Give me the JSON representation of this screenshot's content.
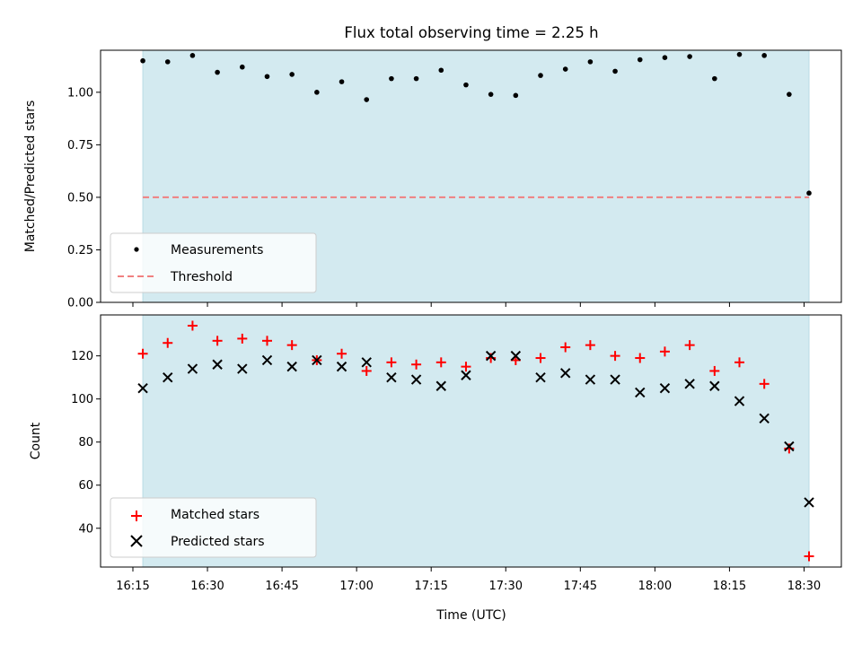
{
  "chart_data": [
    {
      "type": "scatter",
      "title": "Flux total observing time = 2.25 h",
      "xlabel": "",
      "ylabel": "Matched/Predicted stars",
      "ylim": [
        0,
        1.2
      ],
      "yticks": [
        "0.00",
        "0.25",
        "0.50",
        "0.75",
        "1.00"
      ],
      "shaded_span": [
        "16:17",
        "18:31"
      ],
      "threshold": 0.5,
      "legend_position": "lower-left",
      "legend": [
        "Measurements",
        "Threshold"
      ],
      "series": [
        {
          "name": "Measurements",
          "x": [
            "16:17",
            "16:22",
            "16:27",
            "16:32",
            "16:37",
            "16:42",
            "16:47",
            "16:52",
            "16:57",
            "17:02",
            "17:07",
            "17:12",
            "17:17",
            "17:22",
            "17:27",
            "17:32",
            "17:37",
            "17:42",
            "17:47",
            "17:52",
            "17:57",
            "18:02",
            "18:07",
            "18:12",
            "18:17",
            "18:22",
            "18:27",
            "18:31"
          ],
          "y": [
            1.15,
            1.145,
            1.175,
            1.095,
            1.12,
            1.075,
            1.085,
            1.0,
            1.05,
            0.965,
            1.065,
            1.065,
            1.105,
            1.035,
            0.99,
            0.985,
            1.08,
            1.11,
            1.145,
            1.1,
            1.155,
            1.165,
            1.17,
            1.065,
            1.18,
            1.175,
            0.99,
            0.52
          ],
          "color": "#000000"
        },
        {
          "name": "Threshold",
          "y": 0.5,
          "color": "#f08080",
          "style": "dashed"
        }
      ]
    },
    {
      "type": "scatter",
      "title": "",
      "xlabel": "Time (UTC)",
      "ylabel": "Count",
      "ylim": [
        22,
        139
      ],
      "yticks": [
        "40",
        "60",
        "80",
        "100",
        "120"
      ],
      "xticks": [
        "16:15",
        "16:30",
        "16:45",
        "17:00",
        "17:15",
        "17:30",
        "17:45",
        "18:00",
        "18:15",
        "18:30"
      ],
      "shaded_span": [
        "16:17",
        "18:31"
      ],
      "legend_position": "lower-left",
      "legend": [
        "Matched stars",
        "Predicted stars"
      ],
      "series": [
        {
          "name": "Matched stars",
          "marker": "+",
          "color": "#ff0000",
          "x": [
            "16:17",
            "16:22",
            "16:27",
            "16:32",
            "16:37",
            "16:42",
            "16:47",
            "16:52",
            "16:57",
            "17:02",
            "17:07",
            "17:12",
            "17:17",
            "17:22",
            "17:27",
            "17:32",
            "17:37",
            "17:42",
            "17:47",
            "17:52",
            "17:57",
            "18:02",
            "18:07",
            "18:12",
            "18:17",
            "18:22",
            "18:27",
            "18:31"
          ],
          "y": [
            121,
            126,
            134,
            127,
            128,
            127,
            125,
            118,
            121,
            113,
            117,
            116,
            117,
            115,
            119,
            118,
            119,
            124,
            125,
            120,
            119,
            122,
            125,
            113,
            117,
            107,
            77,
            27
          ]
        },
        {
          "name": "Predicted stars",
          "marker": "x",
          "color": "#000000",
          "x": [
            "16:17",
            "16:22",
            "16:27",
            "16:32",
            "16:37",
            "16:42",
            "16:47",
            "16:52",
            "16:57",
            "17:02",
            "17:07",
            "17:12",
            "17:17",
            "17:22",
            "17:27",
            "17:32",
            "17:37",
            "17:42",
            "17:47",
            "17:52",
            "17:57",
            "18:02",
            "18:07",
            "18:12",
            "18:17",
            "18:22",
            "18:27",
            "18:31"
          ],
          "y": [
            105,
            110,
            114,
            116,
            114,
            118,
            115,
            118,
            115,
            117,
            110,
            109,
            106,
            111,
            120,
            120,
            110,
            112,
            109,
            109,
            103,
            105,
            107,
            106,
            99,
            91,
            78,
            52
          ]
        }
      ]
    }
  ],
  "colors": {
    "shade": "#d3eaf0",
    "shade_edge": "#b9dbe4"
  }
}
